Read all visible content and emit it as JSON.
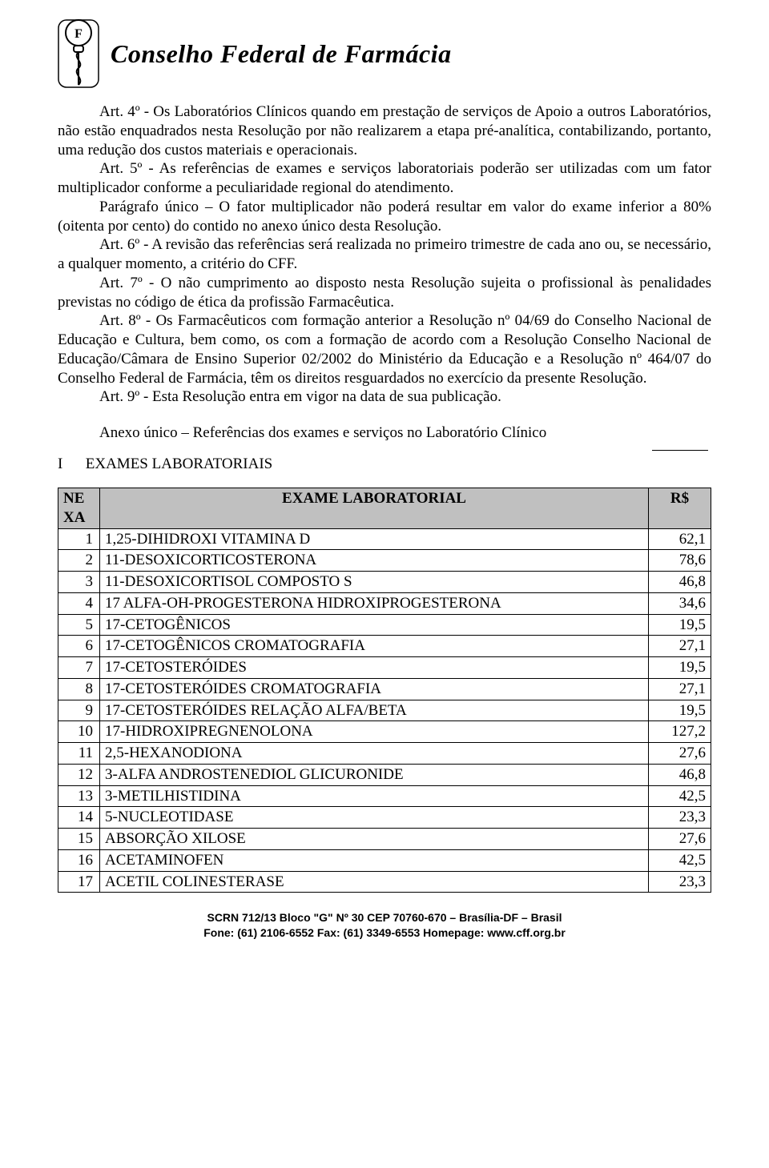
{
  "header": {
    "title": "Conselho Federal de Farmácia"
  },
  "body": {
    "paragraphs": [
      "Art. 4º - Os Laboratórios Clínicos quando em prestação de serviços de Apoio a outros Laboratórios, não estão enquadrados nesta Resolução por não realizarem a etapa pré-analítica, contabilizando, portanto, uma redução dos custos materiais e operacionais.",
      "Art. 5º - As referências de exames e serviços laboratoriais poderão ser utilizadas com um fator multiplicador conforme a peculiaridade regional do atendimento.",
      "Parágrafo único – O fator multiplicador não poderá resultar em valor do exame inferior a 80% (oitenta por cento) do contido no anexo único desta Resolução.",
      "Art. 6º - A revisão das referências será realizada no primeiro trimestre de cada ano ou, se necessário, a qualquer momento, a critério do CFF.",
      "Art. 7º - O não cumprimento ao disposto nesta Resolução sujeita o profissional às penalidades previstas no código de ética da profissão Farmacêutica.",
      "Art. 8º - Os Farmacêuticos com formação anterior a Resolução nº 04/69 do Conselho Nacional de Educação e Cultura, bem como, os com a formação de acordo com a Resolução Conselho Nacional de Educação/Câmara de Ensino Superior 02/2002 do Ministério da Educação e a Resolução nº 464/07 do Conselho Federal de Farmácia, têm os direitos resguardados no exercício da presente Resolução.",
      "Art. 9º - Esta Resolução entra em vigor na data de sua publicação."
    ],
    "annex_title": "Anexo único – Referências dos exames e serviços no Laboratório Clínico",
    "section_roman": "I",
    "section_label": "EXAMES LABORATORIAIS"
  },
  "table": {
    "header_id_line1": "NE",
    "header_id_line2": "XA",
    "header_name": "EXAME LABORATORIAL",
    "header_price": "R$",
    "rows": [
      {
        "id": "1",
        "name": "1,25-DIHIDROXI VITAMINA D",
        "price": "62,1"
      },
      {
        "id": "2",
        "name": "11-DESOXICORTICOSTERONA",
        "price": "78,6"
      },
      {
        "id": "3",
        "name": "11-DESOXICORTISOL COMPOSTO S",
        "price": "46,8"
      },
      {
        "id": "4",
        "name": "17 ALFA-OH-PROGESTERONA HIDROXIPROGESTERONA",
        "price": "34,6"
      },
      {
        "id": "5",
        "name": "17-CETOGÊNICOS",
        "price": "19,5"
      },
      {
        "id": "6",
        "name": "17-CETOGÊNICOS CROMATOGRAFIA",
        "price": "27,1"
      },
      {
        "id": "7",
        "name": "17-CETOSTERÓIDES",
        "price": "19,5"
      },
      {
        "id": "8",
        "name": "17-CETOSTERÓIDES CROMATOGRAFIA",
        "price": "27,1"
      },
      {
        "id": "9",
        "name": "17-CETOSTERÓIDES RELAÇÃO ALFA/BETA",
        "price": "19,5"
      },
      {
        "id": "10",
        "name": "17-HIDROXIPREGNENOLONA",
        "price": "127,2"
      },
      {
        "id": "11",
        "name": "2,5-HEXANODIONA",
        "price": "27,6"
      },
      {
        "id": "12",
        "name": "3-ALFA ANDROSTENEDIOL GLICURONIDE",
        "price": "46,8"
      },
      {
        "id": "13",
        "name": "3-METILHISTIDINA",
        "price": "42,5"
      },
      {
        "id": "14",
        "name": "5-NUCLEOTIDASE",
        "price": "23,3"
      },
      {
        "id": "15",
        "name": "ABSORÇÃO XILOSE",
        "price": "27,6"
      },
      {
        "id": "16",
        "name": "ACETAMINOFEN",
        "price": "42,5"
      },
      {
        "id": "17",
        "name": "ACETIL COLINESTERASE",
        "price": "23,3"
      }
    ]
  },
  "footer": {
    "line1": "SCRN 712/13 Bloco \"G\" Nº 30 CEP 70760-670 – Brasília-DF – Brasil",
    "line2": "Fone: (61) 2106-6552 Fax: (61) 3349-6553 Homepage: www.cff.org.br"
  }
}
